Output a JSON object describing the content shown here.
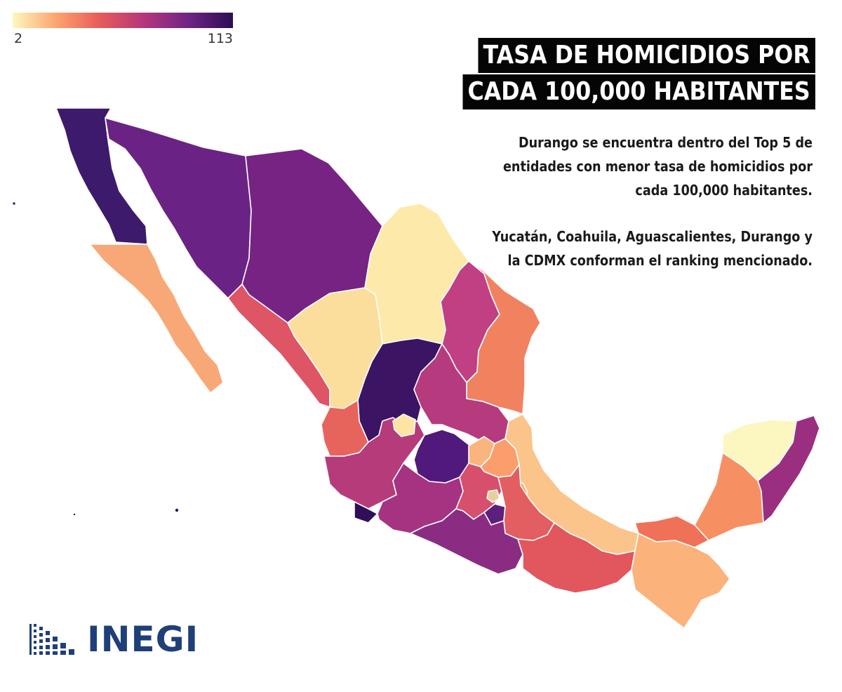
{
  "legend": {
    "min": "2",
    "max": "113",
    "colors": [
      "#fcf8bf",
      "#fba36e",
      "#e75a5a",
      "#b3367a",
      "#6f2485",
      "#2a0f52"
    ]
  },
  "title": {
    "line1": "TASA DE HOMICIDIOS POR",
    "line2": "CADA 100,000 HABITANTES"
  },
  "note": {
    "p1": "Durango se encuentra dentro del Top 5 de entidades con menor tasa de homicidios por cada 100,000 habitantes.",
    "p2": "Yucatán, Coahuila, Aguascalientes, Durango y la CDMX conforman el ranking mencionado."
  },
  "logo": {
    "text": "INEGI",
    "icon": "inegi-dots-icon"
  },
  "map": {
    "states": [
      {
        "id": "baja-california",
        "color": "#3d1a6b"
      },
      {
        "id": "baja-california-sur",
        "color": "#f8a876"
      },
      {
        "id": "sonora",
        "color": "#6a2385"
      },
      {
        "id": "chihuahua",
        "color": "#762383"
      },
      {
        "id": "coahuila",
        "color": "#fde9a9"
      },
      {
        "id": "nuevo-leon",
        "color": "#c04083"
      },
      {
        "id": "tamaulipas",
        "color": "#f08260"
      },
      {
        "id": "sinaloa",
        "color": "#de5566"
      },
      {
        "id": "durango",
        "color": "#fbdd9c"
      },
      {
        "id": "zacatecas",
        "color": "#3b1464"
      },
      {
        "id": "san-luis-potosi",
        "color": "#b63a7e"
      },
      {
        "id": "nayarit",
        "color": "#e7645c"
      },
      {
        "id": "jalisco",
        "color": "#b63b7b"
      },
      {
        "id": "aguascalientes",
        "color": "#fde4a2"
      },
      {
        "id": "guanajuato",
        "color": "#51197b"
      },
      {
        "id": "queretaro",
        "color": "#fab47e"
      },
      {
        "id": "hidalgo",
        "color": "#fb9e6c"
      },
      {
        "id": "veracruz",
        "color": "#fbc48b"
      },
      {
        "id": "colima",
        "color": "#2f0f58"
      },
      {
        "id": "michoacan",
        "color": "#a53382"
      },
      {
        "id": "estado-de-mexico",
        "color": "#d64f6c"
      },
      {
        "id": "cdmx",
        "color": "#e9cf9c"
      },
      {
        "id": "morelos",
        "color": "#5d1f7c"
      },
      {
        "id": "puebla",
        "color": "#e35e60"
      },
      {
        "id": "tlaxcala",
        "color": "#f9a473"
      },
      {
        "id": "guerrero",
        "color": "#8a2d82"
      },
      {
        "id": "oaxaca",
        "color": "#e2565e"
      },
      {
        "id": "chiapas",
        "color": "#fbb27b"
      },
      {
        "id": "tabasco",
        "color": "#ef7158"
      },
      {
        "id": "campeche",
        "color": "#f69063"
      },
      {
        "id": "yucatan",
        "color": "#fcf7c0"
      },
      {
        "id": "quintana-roo",
        "color": "#9a2f7f"
      }
    ]
  }
}
